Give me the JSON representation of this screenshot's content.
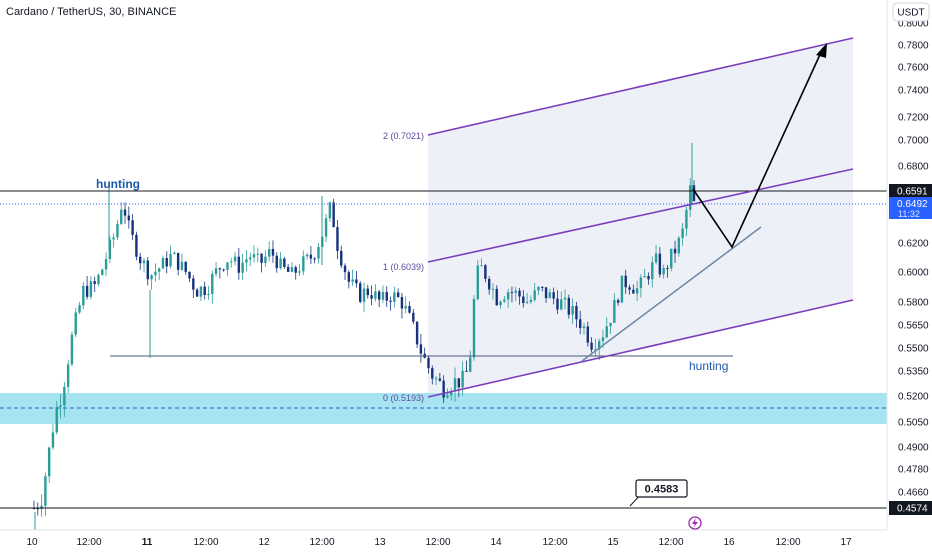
{
  "header": {
    "symbol_title": "Cardano / TetherUS, 30, BINANCE",
    "currency_badge": "USDT"
  },
  "chart_data": {
    "type": "candlestick",
    "title": "Cardano / TetherUS, 30, BINANCE",
    "y_unit": "USDT",
    "ylim": [
      0.447,
      0.82
    ],
    "y_ticks": [
      "0.8000",
      "0.7800",
      "0.7600",
      "0.7400",
      "0.7200",
      "0.7000",
      "0.6800",
      "0.6591",
      "0.6492",
      "0.6200",
      "0.6000",
      "0.5800",
      "0.5650",
      "0.5500",
      "0.5350",
      "0.5200",
      "0.5050",
      "0.4900",
      "0.4780",
      "0.4660",
      "0.4574"
    ],
    "x_ticks": [
      {
        "label": "10",
        "bold": false
      },
      {
        "label": "12:00",
        "bold": false
      },
      {
        "label": "11",
        "bold": true
      },
      {
        "label": "12:00",
        "bold": false
      },
      {
        "label": "12",
        "bold": false
      },
      {
        "label": "12:00",
        "bold": false
      },
      {
        "label": "13",
        "bold": false
      },
      {
        "label": "12:00",
        "bold": false
      },
      {
        "label": "14",
        "bold": false
      },
      {
        "label": "12:00",
        "bold": false
      },
      {
        "label": "15",
        "bold": false
      },
      {
        "label": "12:00",
        "bold": false
      },
      {
        "label": "16",
        "bold": false
      },
      {
        "label": "12:00",
        "bold": false
      },
      {
        "label": "17",
        "bold": false
      }
    ],
    "price_path": [
      [
        0.0,
        0.4574
      ],
      [
        0.01,
        0.462
      ],
      [
        0.02,
        0.484
      ],
      [
        0.03,
        0.51
      ],
      [
        0.04,
        0.523
      ],
      [
        0.055,
        0.56
      ],
      [
        0.07,
        0.588
      ],
      [
        0.085,
        0.59
      ],
      [
        0.095,
        0.6
      ],
      [
        0.105,
        0.615
      ],
      [
        0.115,
        0.628
      ],
      [
        0.125,
        0.652
      ],
      [
        0.135,
        0.63
      ],
      [
        0.15,
        0.61
      ],
      [
        0.165,
        0.598
      ],
      [
        0.18,
        0.604
      ],
      [
        0.195,
        0.612
      ],
      [
        0.215,
        0.6
      ],
      [
        0.23,
        0.588
      ],
      [
        0.245,
        0.59
      ],
      [
        0.26,
        0.602
      ],
      [
        0.275,
        0.61
      ],
      [
        0.29,
        0.604
      ],
      [
        0.305,
        0.612
      ],
      [
        0.32,
        0.606
      ],
      [
        0.335,
        0.615
      ],
      [
        0.35,
        0.603
      ],
      [
        0.365,
        0.598
      ],
      [
        0.38,
        0.606
      ],
      [
        0.395,
        0.612
      ],
      [
        0.41,
        0.63
      ],
      [
        0.42,
        0.648
      ],
      [
        0.43,
        0.618
      ],
      [
        0.445,
        0.594
      ],
      [
        0.46,
        0.585
      ],
      [
        0.475,
        0.588
      ],
      [
        0.49,
        0.58
      ],
      [
        0.505,
        0.585
      ],
      [
        0.52,
        0.581
      ],
      [
        0.535,
        0.565
      ],
      [
        0.55,
        0.545
      ],
      [
        0.565,
        0.532
      ],
      [
        0.58,
        0.525
      ],
      [
        0.595,
        0.529
      ],
      [
        0.61,
        0.53
      ],
      [
        0.618,
        0.548
      ],
      [
        0.625,
        0.597
      ],
      [
        0.633,
        0.603
      ],
      [
        0.642,
        0.596
      ],
      [
        0.655,
        0.583
      ],
      [
        0.67,
        0.588
      ],
      [
        0.685,
        0.585
      ],
      [
        0.7,
        0.58
      ],
      [
        0.715,
        0.588
      ],
      [
        0.73,
        0.584
      ],
      [
        0.745,
        0.58
      ],
      [
        0.76,
        0.574
      ],
      [
        0.775,
        0.566
      ],
      [
        0.79,
        0.553
      ],
      [
        0.805,
        0.56
      ],
      [
        0.82,
        0.575
      ],
      [
        0.83,
        0.591
      ],
      [
        0.84,
        0.594
      ],
      [
        0.855,
        0.588
      ],
      [
        0.87,
        0.6
      ],
      [
        0.88,
        0.608
      ],
      [
        0.89,
        0.598
      ],
      [
        0.9,
        0.61
      ],
      [
        0.91,
        0.618
      ],
      [
        0.92,
        0.632
      ],
      [
        0.928,
        0.662
      ],
      [
        0.934,
        0.6492
      ]
    ],
    "levels": {
      "resistance": 0.6591,
      "current_price": 0.6492,
      "support_line": 0.5455,
      "demand_zone": [
        0.5048,
        0.5238
      ],
      "demand_mid": 0.513,
      "low_line": 0.4574
    },
    "labels": {
      "resistance_tag": "0.6591",
      "current_price_tag": "0.6492",
      "countdown_tag": "11:32",
      "low_tag": "0.4574",
      "callout_value": "0.4583",
      "hunting_left": "hunting",
      "hunting_right": "hunting"
    },
    "fibonacci_channel": [
      {
        "label": "2 (0.7021)"
      },
      {
        "label": "1 (0.6039)"
      },
      {
        "label": "0 (0.5193)"
      }
    ],
    "colors": {
      "up": "#2a9d96",
      "down": "#17317e",
      "channel": "#7b3fbe",
      "zone": "#a5e4f0",
      "price_tag": "#2962ff",
      "projection": "#000000"
    }
  }
}
